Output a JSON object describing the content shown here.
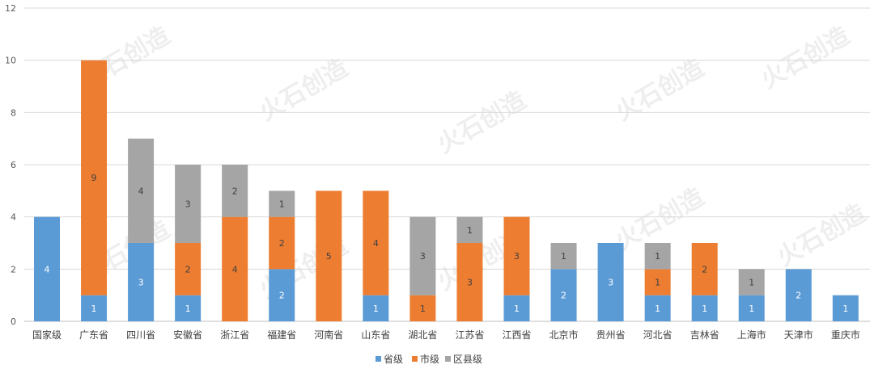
{
  "chart_data": {
    "type": "bar",
    "stacked": true,
    "categories": [
      "国家级",
      "广东省",
      "四川省",
      "安徽省",
      "浙江省",
      "福建省",
      "河南省",
      "山东省",
      "湖北省",
      "江苏省",
      "江西省",
      "北京市",
      "贵州省",
      "河北省",
      "吉林省",
      "上海市",
      "天津市",
      "重庆市"
    ],
    "series": [
      {
        "name": "省级",
        "color": "#5B9BD5",
        "values": [
          4,
          1,
          3,
          1,
          0,
          2,
          0,
          1,
          0,
          0,
          1,
          2,
          3,
          1,
          1,
          1,
          2,
          1
        ]
      },
      {
        "name": "市级",
        "color": "#ED7D31",
        "values": [
          0,
          9,
          0,
          2,
          4,
          2,
          5,
          4,
          1,
          3,
          3,
          0,
          0,
          1,
          2,
          0,
          0,
          0
        ]
      },
      {
        "name": "区县级",
        "color": "#A5A5A5",
        "values": [
          0,
          0,
          4,
          3,
          2,
          1,
          0,
          0,
          3,
          1,
          0,
          1,
          0,
          1,
          0,
          1,
          0,
          0
        ]
      }
    ],
    "ylim": [
      0,
      12
    ],
    "yticks": [
      0,
      2,
      4,
      6,
      8,
      10,
      12
    ],
    "grid": true,
    "legend": "bottom",
    "title": "",
    "xlabel": "",
    "ylabel": ""
  },
  "watermark": "火石创造",
  "colors": {
    "grid": "#D9D9D9",
    "axis": "#BFBFBF",
    "label_dark": "#404040",
    "label_light": "#ffffff"
  }
}
